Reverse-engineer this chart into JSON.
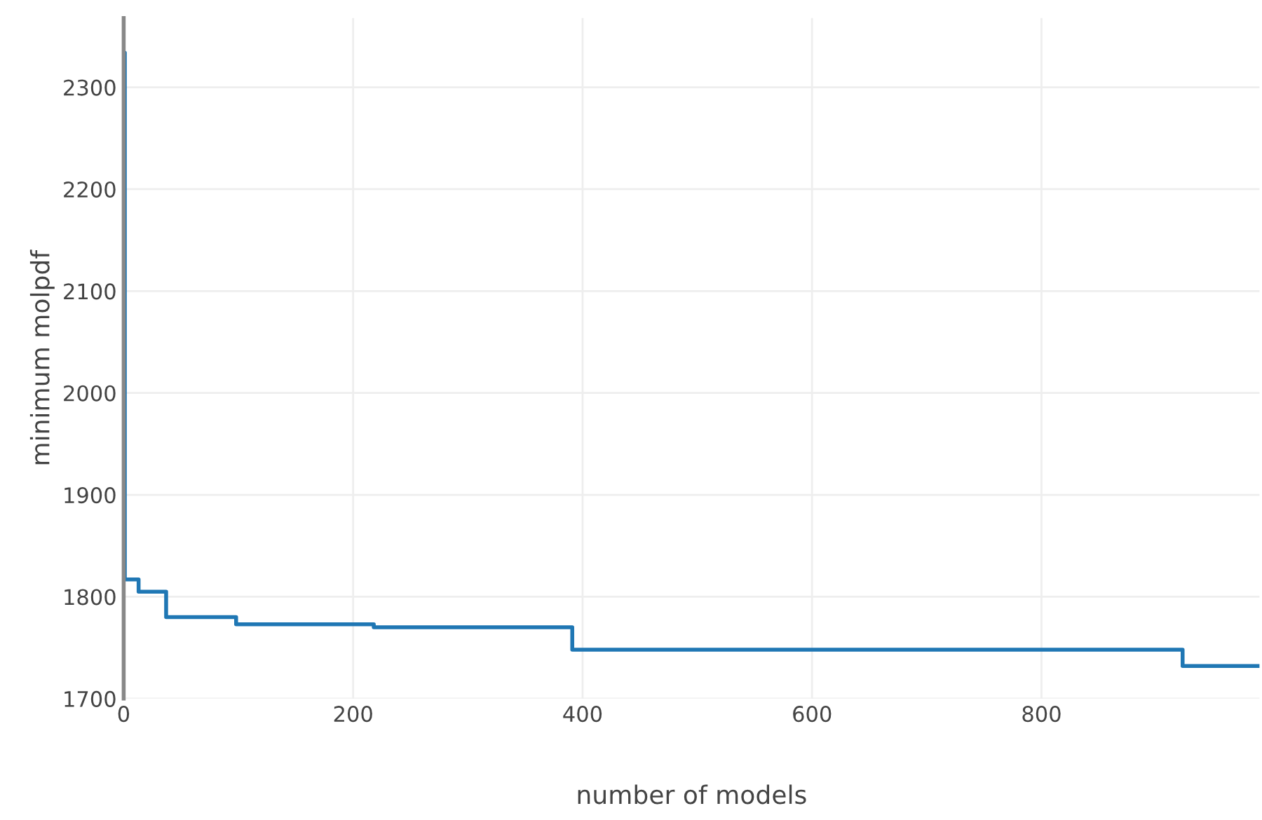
{
  "chart_data": {
    "type": "step",
    "xlabel": "number of models",
    "ylabel": "minimum molpdf",
    "series": [
      {
        "color": "#1f77b4",
        "x": [
          0,
          1,
          13,
          37,
          98,
          218,
          391,
          923,
          990
        ],
        "values": [
          2334,
          1817,
          1805,
          1780,
          1773,
          1770,
          1748,
          1732,
          1732
        ]
      }
    ],
    "xlim": [
      0,
      990
    ],
    "ylim": [
      1700,
      2368
    ],
    "xticks": [
      0,
      200,
      400,
      600,
      800
    ],
    "yticks": [
      1700,
      1800,
      1900,
      2000,
      2100,
      2200,
      2300
    ],
    "grid": true,
    "legend": false,
    "marker": "none",
    "line_style": "solid"
  }
}
